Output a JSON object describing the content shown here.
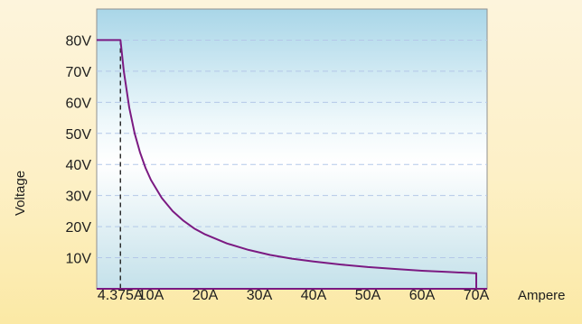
{
  "chart_data": {
    "type": "line",
    "xlabel": "Ampere",
    "ylabel": "Voltage",
    "xlim": [
      0,
      72
    ],
    "ylim": [
      0,
      90
    ],
    "x_ticks": [
      {
        "value": 4.375,
        "label": "4.375A"
      },
      {
        "value": 10,
        "label": "10A"
      },
      {
        "value": 20,
        "label": "20A"
      },
      {
        "value": 30,
        "label": "30A"
      },
      {
        "value": 40,
        "label": "40A"
      },
      {
        "value": 50,
        "label": "50A"
      },
      {
        "value": 60,
        "label": "60A"
      },
      {
        "value": 70,
        "label": "70A"
      }
    ],
    "y_ticks": [
      {
        "value": 10,
        "label": "10V"
      },
      {
        "value": 20,
        "label": "20V"
      },
      {
        "value": 30,
        "label": "30V"
      },
      {
        "value": 40,
        "label": "40V"
      },
      {
        "value": 50,
        "label": "50V"
      },
      {
        "value": 60,
        "label": "60V"
      },
      {
        "value": 70,
        "label": "70V"
      },
      {
        "value": 80,
        "label": "80V"
      }
    ],
    "grid": "horizontal dashed",
    "marker_line": {
      "x": 4.375,
      "style": "dashed"
    },
    "series": [
      {
        "color": "#7b1a82",
        "x": [
          0,
          4.375,
          5,
          6,
          7,
          8,
          9,
          10,
          12,
          14,
          16,
          18,
          20,
          24,
          28,
          32,
          36,
          40,
          45,
          50,
          55,
          60,
          65,
          70,
          70
        ],
        "y": [
          80,
          80,
          70,
          58.3,
          50,
          43.8,
          38.9,
          35,
          29.2,
          25,
          21.9,
          19.4,
          17.5,
          14.6,
          12.5,
          10.9,
          9.7,
          8.8,
          7.8,
          7,
          6.4,
          5.8,
          5.4,
          5,
          0
        ]
      }
    ],
    "colors": {
      "curve": "#7b1a82",
      "axis": "#7b1a82",
      "grid": "#b4c8e8",
      "plot_border": "#909090"
    }
  }
}
